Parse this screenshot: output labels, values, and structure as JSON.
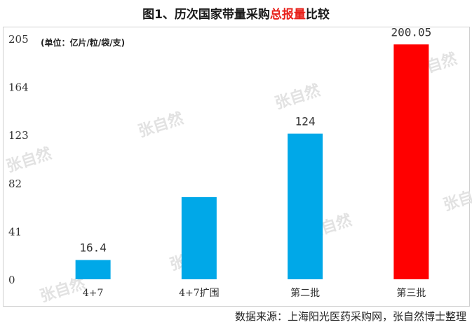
{
  "title_prefix": "图1、历次国家带量采购",
  "title_highlight": "总报量",
  "title_suffix": "比较",
  "unit_note": "(单位：亿片/粒/袋/支)",
  "source_note": "数据来源：上海阳光医药采购网，张自然博士整理",
  "watermark_text": "张自然",
  "chart_data": {
    "type": "bar",
    "categories": [
      "4+7",
      "4+7扩围",
      "第二批",
      "第三批"
    ],
    "values": [
      16.4,
      70,
      124,
      200.05
    ],
    "data_labels": [
      "16.4",
      "",
      "124",
      "200.05"
    ],
    "colors": [
      "#00a8e8",
      "#00a8e8",
      "#00a8e8",
      "#ff0000"
    ],
    "yticks": [
      "0",
      "41",
      "82",
      "123",
      "164",
      "205"
    ],
    "ylim": [
      0,
      205
    ],
    "grid": false,
    "legend": "none"
  }
}
